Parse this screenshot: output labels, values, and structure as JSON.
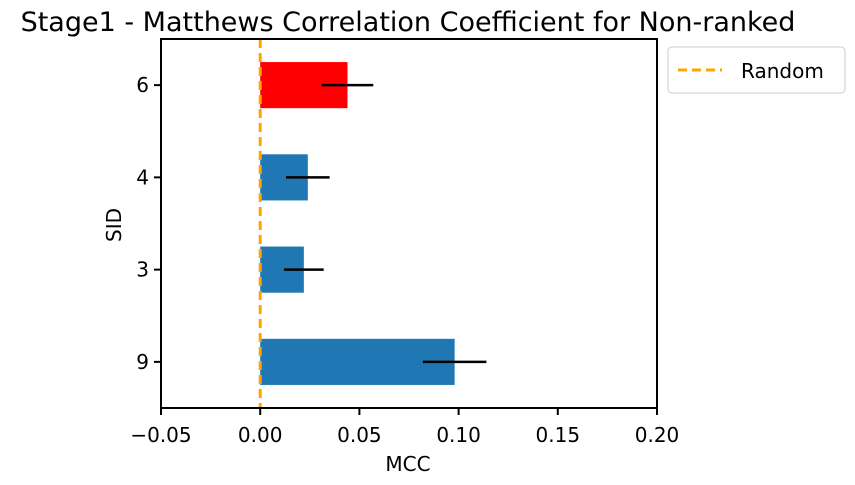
{
  "chart_data": {
    "type": "bar",
    "orientation": "horizontal",
    "title": "Stage1 - Matthews Correlation Coefficient for Non-ranked",
    "xlabel": "MCC",
    "ylabel": "SID",
    "categories": [
      "6",
      "4",
      "3",
      "9"
    ],
    "values": [
      0.044,
      0.024,
      0.022,
      0.098
    ],
    "errors": [
      0.013,
      0.011,
      0.01,
      0.016
    ],
    "colors": [
      "#ff0000",
      "#1f77b4",
      "#1f77b4",
      "#1f77b4"
    ],
    "xlim": [
      -0.05,
      0.2
    ],
    "xticks": [
      -0.05,
      0.0,
      0.05,
      0.1,
      0.15,
      0.2
    ],
    "xtick_labels": [
      "−0.05",
      "0.00",
      "0.05",
      "0.10",
      "0.15",
      "0.20"
    ],
    "grid": false,
    "reference_line": {
      "name": "Random",
      "x": 0.0,
      "color": "#ffa500",
      "style": "dashed"
    },
    "legend": {
      "placement": "outside-top-right",
      "entries": [
        "Random"
      ]
    }
  }
}
